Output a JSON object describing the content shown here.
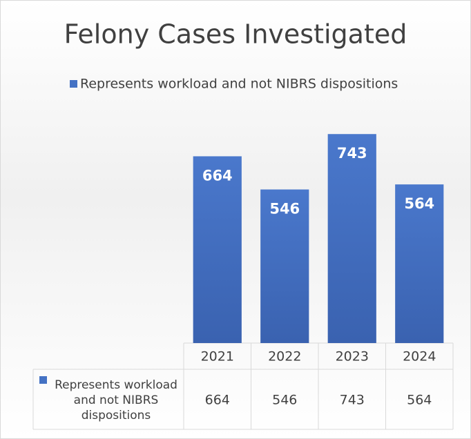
{
  "chart_data": {
    "type": "bar",
    "title": "Felony Cases Investigated",
    "categories": [
      "2021",
      "2022",
      "2023",
      "2024"
    ],
    "series": [
      {
        "name": "Represents workload and not NIBRS dispositions",
        "color": "#4472c4",
        "values": [
          664,
          546,
          743,
          564
        ]
      }
    ],
    "ylim": [
      0,
      800
    ],
    "legend": "top",
    "data_table": true
  }
}
